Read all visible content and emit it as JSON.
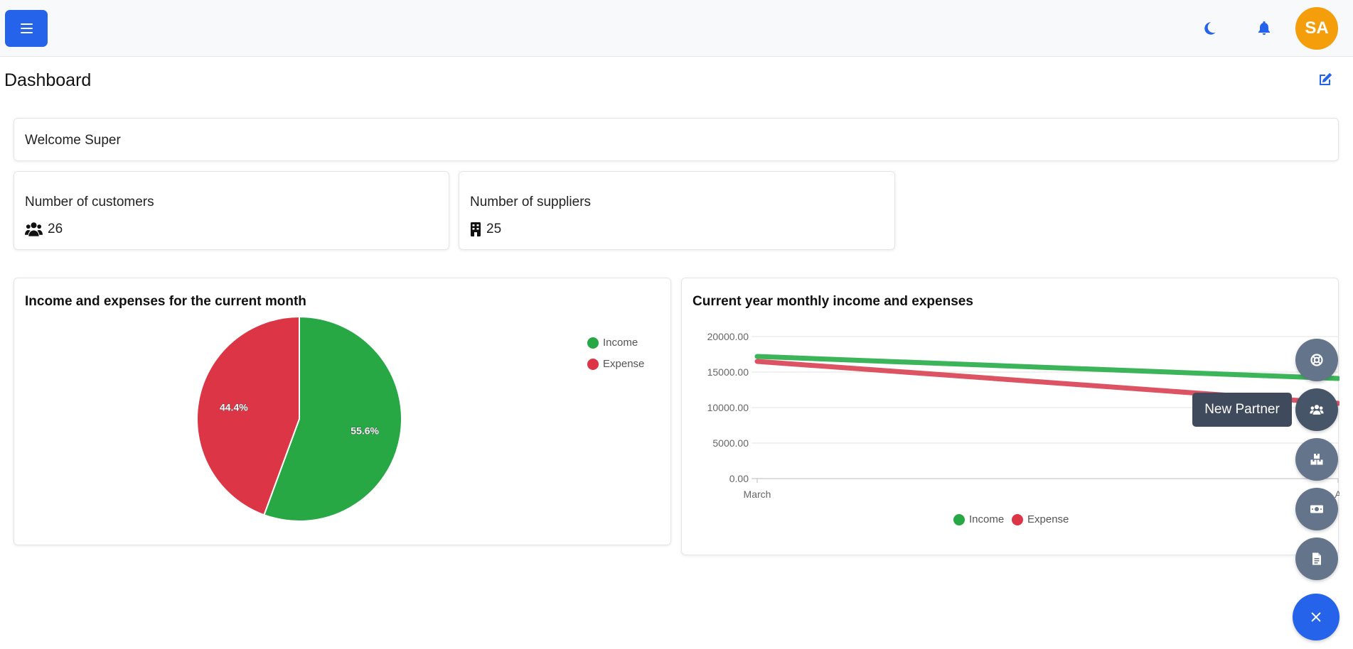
{
  "header": {
    "menu_icon": "hamburger-icon",
    "theme_icon": "moon-icon",
    "notification_icon": "bell-icon",
    "avatar_initials": "SA",
    "avatar_color": "#f59e0b",
    "accent_color": "#2563eb"
  },
  "page": {
    "title": "Dashboard",
    "edit_icon": "edit-icon"
  },
  "welcome": {
    "text": "Welcome Super"
  },
  "stats": [
    {
      "label": "Number of customers",
      "value": "26",
      "icon": "users-icon"
    },
    {
      "label": "Number of suppliers",
      "value": "25",
      "icon": "building-icon"
    }
  ],
  "pie_chart": {
    "title": "Income and expenses for the current month",
    "legend": [
      "Income",
      "Expense"
    ],
    "slice_labels": [
      "55.6%",
      "44.4%"
    ]
  },
  "line_chart": {
    "title": "Current year monthly income and expenses",
    "y_ticks": [
      "20000.00",
      "15000.00",
      "10000.00",
      "5000.00",
      "0.00"
    ],
    "x_ticks": [
      "March",
      "A"
    ],
    "legend": [
      "Income",
      "Expense"
    ]
  },
  "chart_data": [
    {
      "type": "pie",
      "title": "Income and expenses for the current month",
      "categories": [
        "Income",
        "Expense"
      ],
      "values": [
        55.6,
        44.4
      ],
      "colors": [
        "#28a745",
        "#dc3545"
      ],
      "legend": "top-right"
    },
    {
      "type": "line",
      "title": "Current year monthly income and expenses",
      "x": [
        "March",
        "April"
      ],
      "series": [
        {
          "name": "Income",
          "values": [
            17200,
            14100
          ],
          "color": "#3cb55a"
        },
        {
          "name": "Expense",
          "values": [
            16500,
            10600
          ],
          "color": "#dc5363"
        }
      ],
      "ylim": [
        0,
        20000
      ],
      "grid": true,
      "legend": "bottom"
    }
  ],
  "fab_menu": {
    "items": [
      "lifebuoy-icon",
      "users-icon",
      "boxes-icon",
      "money-icon",
      "invoice-icon"
    ],
    "active_tooltip": "New Partner",
    "main_icon": "close-icon"
  }
}
